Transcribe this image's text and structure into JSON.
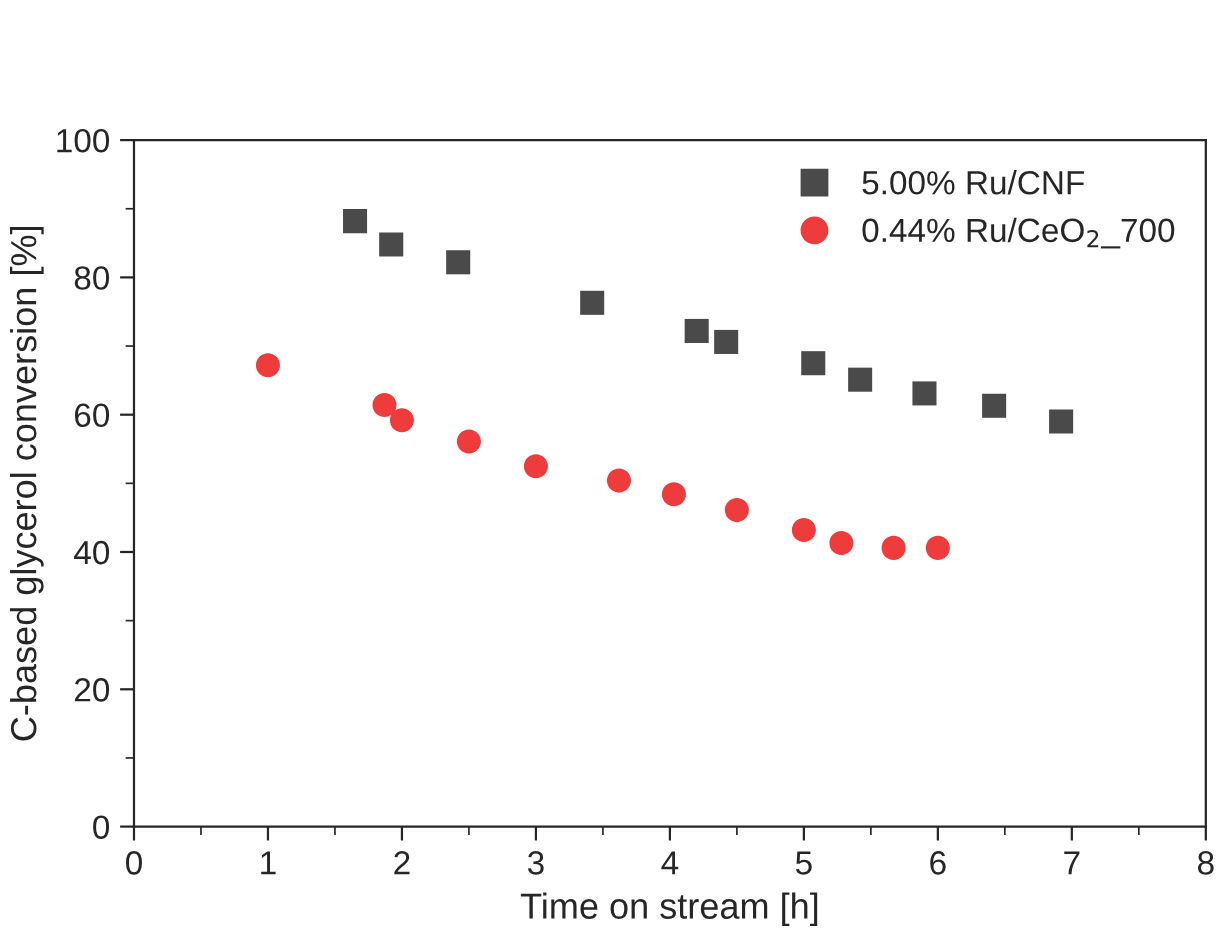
{
  "chart_data": {
    "type": "scatter",
    "xlabel": "Time on stream [h]",
    "ylabel": "C-based glycerol conversion [%]",
    "xlim": [
      0,
      8
    ],
    "ylim": [
      0,
      100
    ],
    "xticks": [
      0,
      {
        "value": 0.5,
        "label": null
      },
      1,
      {
        "value": 1.5,
        "label": null
      },
      2,
      {
        "value": 2.5,
        "label": null
      },
      3,
      {
        "value": 3.5,
        "label": null
      },
      4,
      {
        "value": 4.5,
        "label": null
      },
      5,
      {
        "value": 5.5,
        "label": null
      },
      6,
      {
        "value": 6.5,
        "label": null
      },
      7,
      {
        "value": 7.5,
        "label": null
      },
      8
    ],
    "yticks": [
      0,
      {
        "value": 10,
        "label": null
      },
      20,
      {
        "value": 30,
        "label": null
      },
      40,
      {
        "value": 50,
        "label": null
      },
      60,
      {
        "value": 70,
        "label": null
      },
      80,
      {
        "value": 90,
        "label": null
      },
      100
    ],
    "legend": "top right",
    "grid": false,
    "series": [
      {
        "name": "5.00% Ru/CNF",
        "color": "#4a4a4a",
        "marker": "square",
        "x": [
          1.65,
          1.92,
          2.42,
          3.42,
          4.2,
          4.42,
          5.07,
          5.42,
          5.9,
          6.42,
          6.92
        ],
        "values": [
          88.2,
          84.8,
          82.2,
          76.3,
          72.2,
          70.6,
          67.5,
          65.1,
          63.1,
          61.3,
          59.0
        ]
      },
      {
        "name": "0.44% Ru/CeO$_{2}$_700",
        "color": "#ee3b3b",
        "marker": "circle",
        "x": [
          1.0,
          1.87,
          2.0,
          2.5,
          3.0,
          3.62,
          4.03,
          4.5,
          5.0,
          5.28,
          5.67,
          6.0
        ],
        "values": [
          67.2,
          61.4,
          59.2,
          56.1,
          52.5,
          50.4,
          48.4,
          46.1,
          43.2,
          41.3,
          40.6,
          40.6
        ]
      }
    ]
  }
}
